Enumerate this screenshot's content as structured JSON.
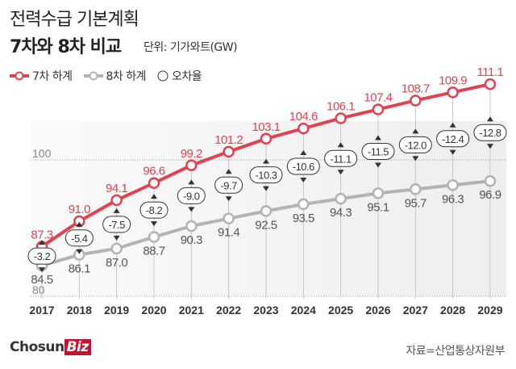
{
  "title_line1": "전력수급 기본계획",
  "title_line2": "7차와 8차 비교",
  "unit": "단위: 기가와트(GW)",
  "legend": {
    "s1": "7차 하계",
    "s2": "8차 하계",
    "s3": "오차율"
  },
  "logo": {
    "main": "Chosun",
    "biz": "Biz"
  },
  "source": "자료=산업통상자원부",
  "chart_data": {
    "type": "line",
    "categories": [
      "2017",
      "2018",
      "2019",
      "2020",
      "2021",
      "2022",
      "2023",
      "2024",
      "2025",
      "2026",
      "2027",
      "2028",
      "2029"
    ],
    "series": [
      {
        "name": "7차 하계",
        "color": "#e0434f",
        "values": [
          87.3,
          91.0,
          94.1,
          96.6,
          99.2,
          101.2,
          103.1,
          104.6,
          106.1,
          107.4,
          108.7,
          109.9,
          111.1
        ]
      },
      {
        "name": "8차 하계",
        "color": "#b3b3b3",
        "values": [
          84.5,
          86.1,
          87.0,
          88.7,
          90.3,
          91.4,
          92.5,
          93.5,
          94.3,
          95.1,
          95.7,
          96.3,
          96.9
        ]
      }
    ],
    "differences": {
      "name": "오차율",
      "values": [
        "-3.2",
        "-5.4",
        "-7.5",
        "-8.2",
        "-9.0",
        "-9.7",
        "-10.3",
        "-10.6",
        "-11.1",
        "-11.5",
        "-12.0",
        "-12.4",
        "-12.8"
      ]
    },
    "yticks": [
      "80",
      "100"
    ],
    "ylim": [
      80,
      111.1
    ],
    "grid": "dotted at ticks"
  }
}
